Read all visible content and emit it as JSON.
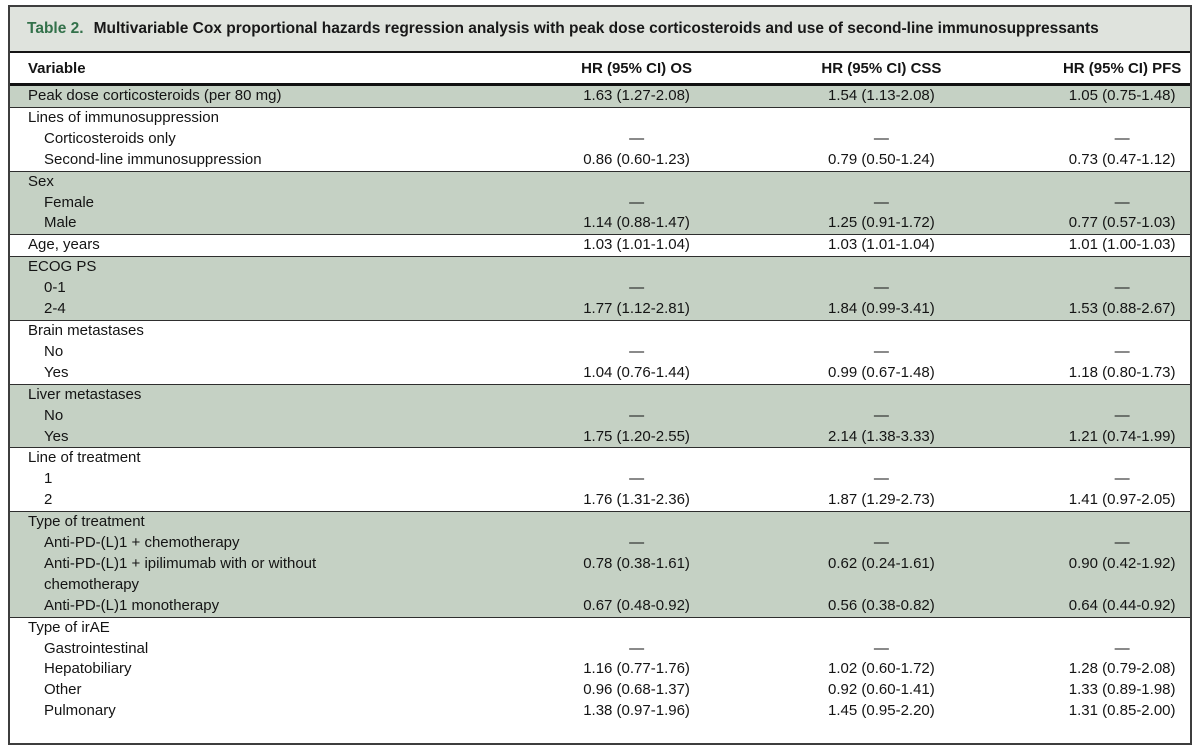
{
  "table": {
    "label": "Table 2.",
    "title": "Multivariable Cox proportional hazards regression analysis with peak dose corticosteroids and use of second-line immunosuppressants",
    "columns": {
      "variable": "Variable",
      "os": "HR (95% CI) OS",
      "css": "HR (95% CI) CSS",
      "pfs": "HR (95% CI) PFS"
    },
    "reference_marker": "—",
    "rows": [
      {
        "label": "Peak dose corticosteroids (per 80 mg)",
        "indent": 0,
        "shaded": true,
        "group_start": false,
        "values": [
          "1.63 (1.27-2.08)",
          "1.54 (1.13-2.08)",
          "1.05 (0.75-1.48)"
        ]
      },
      {
        "label": "Lines of immunosuppression",
        "indent": 0,
        "shaded": false,
        "group_start": true,
        "values": [
          "",
          "",
          ""
        ]
      },
      {
        "label": "Corticosteroids only",
        "indent": 1,
        "shaded": false,
        "group_start": false,
        "values": [
          "—",
          "—",
          "—"
        ]
      },
      {
        "label": "Second-line immunosuppression",
        "indent": 1,
        "shaded": false,
        "group_start": false,
        "values": [
          "0.86 (0.60-1.23)",
          "0.79 (0.50-1.24)",
          "0.73 (0.47-1.12)"
        ]
      },
      {
        "label": "Sex",
        "indent": 0,
        "shaded": true,
        "group_start": true,
        "values": [
          "",
          "",
          ""
        ]
      },
      {
        "label": "Female",
        "indent": 1,
        "shaded": true,
        "group_start": false,
        "values": [
          "—",
          "—",
          "—"
        ]
      },
      {
        "label": "Male",
        "indent": 1,
        "shaded": true,
        "group_start": false,
        "values": [
          "1.14 (0.88-1.47)",
          "1.25 (0.91-1.72)",
          "0.77 (0.57-1.03)"
        ]
      },
      {
        "label": "Age, years",
        "indent": 0,
        "shaded": false,
        "group_start": true,
        "values": [
          "1.03 (1.01-1.04)",
          "1.03 (1.01-1.04)",
          "1.01 (1.00-1.03)"
        ]
      },
      {
        "label": "ECOG PS",
        "indent": 0,
        "shaded": true,
        "group_start": true,
        "values": [
          "",
          "",
          ""
        ]
      },
      {
        "label": "0-1",
        "indent": 1,
        "shaded": true,
        "group_start": false,
        "values": [
          "—",
          "—",
          "—"
        ]
      },
      {
        "label": "2-4",
        "indent": 1,
        "shaded": true,
        "group_start": false,
        "values": [
          "1.77 (1.12-2.81)",
          "1.84 (0.99-3.41)",
          "1.53 (0.88-2.67)"
        ]
      },
      {
        "label": "Brain metastases",
        "indent": 0,
        "shaded": false,
        "group_start": true,
        "values": [
          "",
          "",
          ""
        ]
      },
      {
        "label": "No",
        "indent": 1,
        "shaded": false,
        "group_start": false,
        "values": [
          "—",
          "—",
          "—"
        ]
      },
      {
        "label": "Yes",
        "indent": 1,
        "shaded": false,
        "group_start": false,
        "values": [
          "1.04 (0.76-1.44)",
          "0.99 (0.67-1.48)",
          "1.18 (0.80-1.73)"
        ]
      },
      {
        "label": "Liver metastases",
        "indent": 0,
        "shaded": true,
        "group_start": true,
        "values": [
          "",
          "",
          ""
        ]
      },
      {
        "label": "No",
        "indent": 1,
        "shaded": true,
        "group_start": false,
        "values": [
          "—",
          "—",
          "—"
        ]
      },
      {
        "label": "Yes",
        "indent": 1,
        "shaded": true,
        "group_start": false,
        "values": [
          "1.75 (1.20-2.55)",
          "2.14 (1.38-3.33)",
          "1.21 (0.74-1.99)"
        ]
      },
      {
        "label": "Line of treatment",
        "indent": 0,
        "shaded": false,
        "group_start": true,
        "values": [
          "",
          "",
          ""
        ]
      },
      {
        "label": "1",
        "indent": 1,
        "shaded": false,
        "group_start": false,
        "values": [
          "—",
          "—",
          "—"
        ]
      },
      {
        "label": "2",
        "indent": 1,
        "shaded": false,
        "group_start": false,
        "values": [
          "1.76 (1.31-2.36)",
          "1.87 (1.29-2.73)",
          "1.41 (0.97-2.05)"
        ]
      },
      {
        "label": "Type of treatment",
        "indent": 0,
        "shaded": true,
        "group_start": true,
        "values": [
          "",
          "",
          ""
        ]
      },
      {
        "label": "Anti-PD-(L)1 + chemotherapy",
        "indent": 1,
        "shaded": true,
        "group_start": false,
        "values": [
          "—",
          "—",
          "—"
        ]
      },
      {
        "label": "Anti-PD-(L)1 + ipilimumab with or without\nchemotherapy",
        "indent": 1,
        "shaded": true,
        "group_start": false,
        "values": [
          "0.78 (0.38-1.61)",
          "0.62 (0.24-1.61)",
          "0.90 (0.42-1.92)"
        ]
      },
      {
        "label": "Anti-PD-(L)1 monotherapy",
        "indent": 1,
        "shaded": true,
        "group_start": false,
        "values": [
          "0.67 (0.48-0.92)",
          "0.56 (0.38-0.82)",
          "0.64 (0.44-0.92)"
        ]
      },
      {
        "label": "Type of irAE",
        "indent": 0,
        "shaded": false,
        "group_start": true,
        "values": [
          "",
          "",
          ""
        ]
      },
      {
        "label": "Gastrointestinal",
        "indent": 1,
        "shaded": false,
        "group_start": false,
        "values": [
          "—",
          "—",
          "—"
        ]
      },
      {
        "label": "Hepatobiliary",
        "indent": 1,
        "shaded": false,
        "group_start": false,
        "values": [
          "1.16 (0.77-1.76)",
          "1.02 (0.60-1.72)",
          "1.28 (0.79-2.08)"
        ]
      },
      {
        "label": "Other",
        "indent": 1,
        "shaded": false,
        "group_start": false,
        "values": [
          "0.96 (0.68-1.37)",
          "0.92 (0.60-1.41)",
          "1.33 (0.89-1.98)"
        ]
      },
      {
        "label": "Pulmonary",
        "indent": 1,
        "shaded": false,
        "group_start": false,
        "values": [
          "1.38 (0.97-1.96)",
          "1.45 (0.95-2.20)",
          "1.31 (0.85-2.00)"
        ]
      }
    ]
  },
  "colors": {
    "accent_green": "#33714a",
    "titlebar_bg": "#dfe3dd",
    "shaded_row": "#c5d1c4",
    "border_dark": "#3e3e3e",
    "text": "#1a1a1a"
  }
}
